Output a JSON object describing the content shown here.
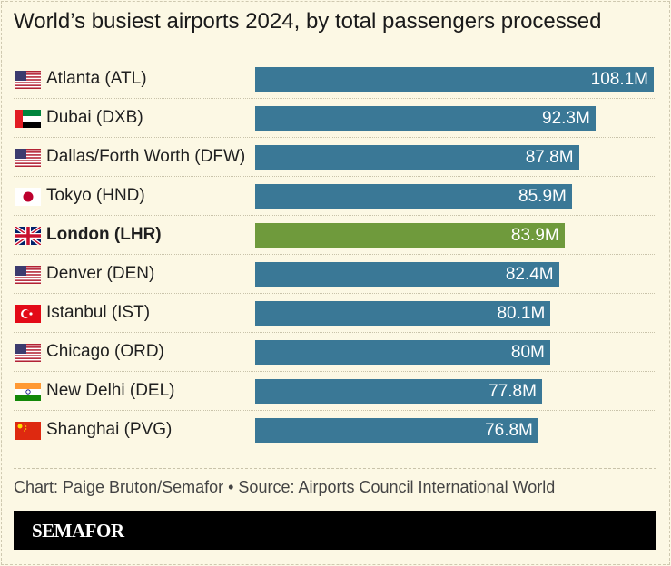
{
  "colors": {
    "bar": "#3a7896",
    "highlight": "#6f9a3c",
    "background": "#fcf8e4"
  },
  "chart_data": {
    "type": "bar",
    "orientation": "horizontal",
    "title": "World’s busiest airports 2024, by total passengers processed",
    "categories": [
      "Atlanta (ATL)",
      "Dubai (DXB)",
      "Dallas/Forth Worth (DFW)",
      "Tokyo (HND)",
      "London (LHR)",
      "Denver (DEN)",
      "Istanbul (IST)",
      "Chicago (ORD)",
      "New Delhi (DEL)",
      "Shanghai (PVG)"
    ],
    "values": [
      108.1,
      92.3,
      87.8,
      85.9,
      83.9,
      82.4,
      80.1,
      80,
      77.8,
      76.8
    ],
    "value_labels": [
      "108.1M",
      "92.3M",
      "87.8M",
      "85.9M",
      "83.9M",
      "82.4M",
      "80.1M",
      "80M",
      "77.8M",
      "76.8M"
    ],
    "flags": [
      "us",
      "ae",
      "us",
      "jp",
      "gb",
      "us",
      "tr",
      "us",
      "in",
      "cn"
    ],
    "highlighted": "London (LHR)",
    "xlim": [
      0,
      108.1
    ],
    "grid": false,
    "legend": "none"
  },
  "footer": {
    "source": "Chart: Paige Bruton/Semafor • Source: Airports Council International World",
    "brand": "SEMAFOR"
  }
}
